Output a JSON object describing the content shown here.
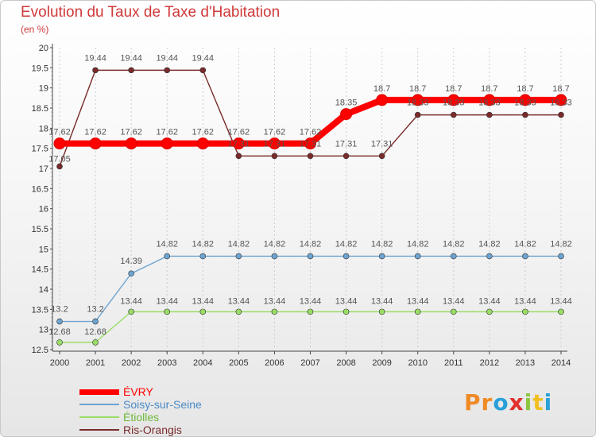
{
  "colors": {
    "title": "#d03a3a",
    "axis": "#444444",
    "grid": "#cccccc"
  },
  "chart_data": {
    "type": "line",
    "title": "Evolution du Taux de Taxe d'Habitation",
    "subtitle": "(en %)",
    "xlabel": "",
    "ylabel": "(en %)",
    "ylim": [
      12.5,
      20
    ],
    "yticks": [
      "12.5",
      "13",
      "13.5",
      "14",
      "14.5",
      "15",
      "15.5",
      "16",
      "16.5",
      "17",
      "17.5",
      "18",
      "18.5",
      "19",
      "19.5",
      "20"
    ],
    "categories": [
      "2000",
      "2001",
      "2002",
      "2003",
      "2004",
      "2005",
      "2006",
      "2007",
      "2008",
      "2009",
      "2010",
      "2011",
      "2012",
      "2013",
      "2014"
    ],
    "series": [
      {
        "name": "ÉVRY",
        "color": "#ff0000",
        "width": "thick",
        "values": [
          17.62,
          17.62,
          17.62,
          17.62,
          17.62,
          17.62,
          17.62,
          17.62,
          18.35,
          18.7,
          18.7,
          18.7,
          18.7,
          18.7,
          18.7
        ],
        "labels": [
          "17.62",
          "17.62",
          "17.62",
          "17.62",
          "17.62",
          "17.62",
          "17.62",
          "17.62",
          "18.35",
          "18.7",
          "18.7",
          "18.7",
          "18.7",
          "18.7",
          "18.7"
        ]
      },
      {
        "name": "Soisy-sur-Seine",
        "color": "#6ea3d0",
        "width": "thin",
        "values": [
          13.2,
          13.2,
          14.39,
          14.82,
          14.82,
          14.82,
          14.82,
          14.82,
          14.82,
          14.82,
          14.82,
          14.82,
          14.82,
          14.82,
          14.82
        ],
        "labels": [
          "13.2",
          "13.2",
          "14.39",
          "14.82",
          "14.82",
          "14.82",
          "14.82",
          "14.82",
          "14.82",
          "14.82",
          "14.82",
          "14.82",
          "14.82",
          "14.82",
          "14.82"
        ]
      },
      {
        "name": "Étiolles",
        "color": "#99dd66",
        "width": "thin",
        "values": [
          12.68,
          12.68,
          13.44,
          13.44,
          13.44,
          13.44,
          13.44,
          13.44,
          13.44,
          13.44,
          13.44,
          13.44,
          13.44,
          13.44,
          13.44
        ],
        "labels": [
          "12.68",
          "12.68",
          "13.44",
          "13.44",
          "13.44",
          "13.44",
          "13.44",
          "13.44",
          "13.44",
          "13.44",
          "13.44",
          "13.44",
          "13.44",
          "13.44",
          "13.44"
        ]
      },
      {
        "name": "Ris-Orangis",
        "color": "#7a2a2a",
        "width": "thin",
        "values": [
          17.05,
          19.44,
          19.44,
          19.44,
          19.44,
          17.31,
          17.31,
          17.31,
          17.31,
          17.31,
          18.33,
          18.33,
          18.33,
          18.33,
          18.33
        ],
        "labels": [
          "17.05",
          "19.44",
          "19.44",
          "19.44",
          "19.44",
          "17.31",
          "17.31",
          "17.31",
          "17.31",
          "17.31",
          "18.33",
          "18.33",
          "18.33",
          "18.33",
          "18.33"
        ]
      }
    ],
    "legend_position": "bottom-left"
  },
  "legend": [
    {
      "label": "ÉVRY"
    },
    {
      "label": "Soisy-sur-Seine"
    },
    {
      "label": "Étiolles"
    },
    {
      "label": "Ris-Orangis"
    }
  ],
  "logo": {
    "text": "Proxiti",
    "letters": [
      {
        "ch": "P",
        "color": "#f08a24"
      },
      {
        "ch": "r",
        "color": "#f08a24"
      },
      {
        "ch": "o",
        "color": "#2aa0d8"
      },
      {
        "ch": "x",
        "color": "#e03030"
      },
      {
        "ch": "i",
        "color": "#8cc63f"
      },
      {
        "ch": "t",
        "color": "#f0c020"
      },
      {
        "ch": "i",
        "color": "#2aa0d8"
      }
    ]
  }
}
